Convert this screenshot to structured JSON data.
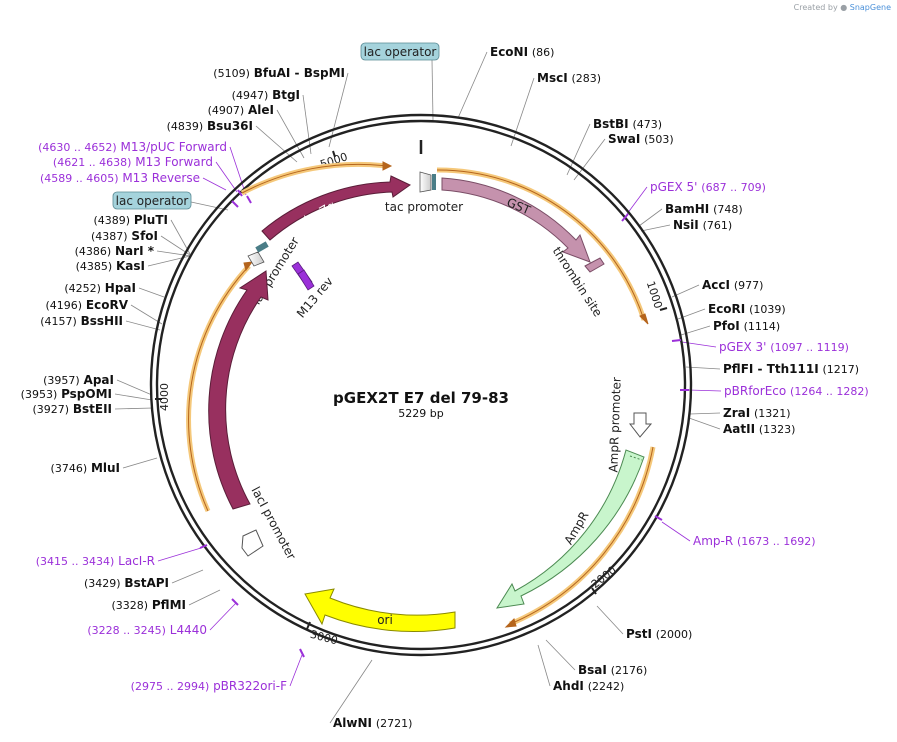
{
  "credit": {
    "prefix": "Created by",
    "brand": "SnapGene"
  },
  "plasmid": {
    "name": "pGEX2T E7 del 79-83",
    "size_label": "5229 bp",
    "length": 5229
  },
  "colors": {
    "backbone": "#222222",
    "primer": "#9b30d9",
    "lacZa": "#98305f",
    "lacI": "#98305f",
    "GST": "#c592ad",
    "ampR": "#c8f5cc",
    "ori": "#ffff00",
    "orf_highlight": "#f5c87a",
    "operator_fill": "#a5d3dc",
    "promoter_fill": "#ffffff",
    "primer_label": "#9b30d9"
  },
  "ticks": [
    {
      "label": "5000"
    },
    {
      "label": "1000"
    },
    {
      "label": "2000"
    },
    {
      "label": "3000"
    },
    {
      "label": "4000"
    }
  ],
  "features": [
    {
      "name": "GST",
      "label": "GST"
    },
    {
      "name": "thrombin",
      "label": "thrombin site"
    },
    {
      "name": "ampr",
      "label": "AmpR"
    },
    {
      "name": "ampr_promoter",
      "label": "AmpR promoter"
    },
    {
      "name": "ori",
      "label": "ori"
    },
    {
      "name": "lacI",
      "label": "lacI"
    },
    {
      "name": "lacI_promoter",
      "label": "lacI promoter"
    },
    {
      "name": "lacZa",
      "label": "lacZα"
    },
    {
      "name": "lac_promoter",
      "label": "lac promoter"
    },
    {
      "name": "tac_promoter",
      "label": "tac promoter"
    },
    {
      "name": "m13_rev",
      "label": "M13 rev"
    }
  ],
  "operators": [
    {
      "label": "lac operator"
    },
    {
      "label": "lac operator"
    }
  ],
  "sites": [
    {
      "name": "EcoNI",
      "pos": "(86)"
    },
    {
      "name": "MscI",
      "pos": "(283)"
    },
    {
      "name": "BstBI",
      "pos": "(473)"
    },
    {
      "name": "SwaI",
      "pos": "(503)"
    },
    {
      "name": "pGEX 5'",
      "pos": "(687 .. 709)",
      "primer": true
    },
    {
      "name": "BamHI",
      "pos": "(748)"
    },
    {
      "name": "NsiI",
      "pos": "(761)"
    },
    {
      "name": "AccI",
      "pos": "(977)"
    },
    {
      "name": "EcoRI",
      "pos": "(1039)"
    },
    {
      "name": "PfoI",
      "pos": "(1114)"
    },
    {
      "name": "pGEX 3'",
      "pos": "(1097 .. 1119)",
      "primer": true
    },
    {
      "name": "PflFI  - Tth111I",
      "pos": "(1217)"
    },
    {
      "name": "pBRforEco",
      "pos": "(1264 .. 1282)",
      "primer": true
    },
    {
      "name": "ZraI",
      "pos": "(1321)"
    },
    {
      "name": "AatII",
      "pos": "(1323)"
    },
    {
      "name": "Amp-R",
      "pos": "(1673 .. 1692)",
      "primer": true
    },
    {
      "name": "PstI",
      "pos": "(2000)"
    },
    {
      "name": "BsaI",
      "pos": "(2176)"
    },
    {
      "name": "AhdI",
      "pos": "(2242)"
    },
    {
      "name": "AlwNI",
      "pos": "(2721)"
    },
    {
      "name": "pBR322ori-F",
      "pos": "(2975 .. 2994)",
      "primer": true
    },
    {
      "name": "L4440",
      "pos": "(3228 .. 3245)",
      "primer": true
    },
    {
      "name": "PflMI",
      "pos": "(3328)"
    },
    {
      "name": "BstAPI",
      "pos": "(3429)"
    },
    {
      "name": "LacI-R",
      "pos": "(3415 .. 3434)",
      "primer": true
    },
    {
      "name": "MluI",
      "pos": "(3746)"
    },
    {
      "name": "BstEII",
      "pos": "(3927)"
    },
    {
      "name": "PspOMI",
      "pos": "(3953)"
    },
    {
      "name": "ApaI",
      "pos": "(3957)"
    },
    {
      "name": "BssHII",
      "pos": "(4157)"
    },
    {
      "name": "EcoRV",
      "pos": "(4196)"
    },
    {
      "name": "HpaI",
      "pos": "(4252)"
    },
    {
      "name": "KasI",
      "pos": "(4385)"
    },
    {
      "name": "NarI *",
      "pos": "(4386)"
    },
    {
      "name": "SfoI",
      "pos": "(4387)"
    },
    {
      "name": "PluTI",
      "pos": "(4389)"
    },
    {
      "name": "M13 Reverse",
      "pos": "(4589 .. 4605)",
      "primer": true
    },
    {
      "name": "M13 Forward",
      "pos": "(4621 .. 4638)",
      "primer": true
    },
    {
      "name": "M13/pUC Forward",
      "pos": "(4630 .. 4652)",
      "primer": true
    },
    {
      "name": "Bsu36I",
      "pos": "(4839)"
    },
    {
      "name": "AleI",
      "pos": "(4907)"
    },
    {
      "name": "BtgI",
      "pos": "(4947)"
    },
    {
      "name": "BfuAI  - BspMI",
      "pos": "(5109)"
    }
  ]
}
